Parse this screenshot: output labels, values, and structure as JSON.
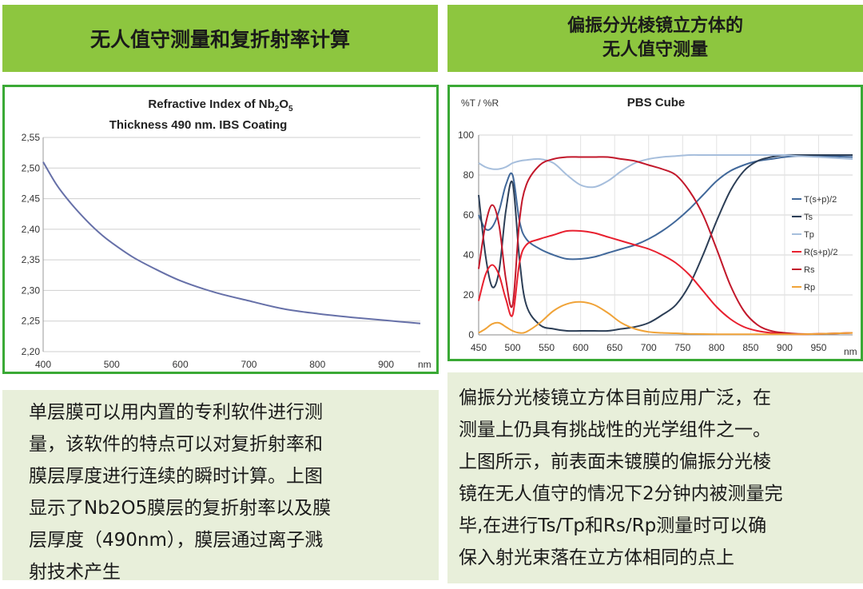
{
  "left": {
    "header": "无人值守测量和复折射率计算",
    "description_lines": [
      "单层膜可以用内置的专利软件进行测",
      "量，该软件的特点可以对复折射率和",
      "膜层厚度进行连续的瞬时计算。上图",
      "显示了Nb2O5膜层的复折射率以及膜",
      "层厚度（490nm），膜层通过离子溅",
      "射技术产生"
    ]
  },
  "right": {
    "header_line1": "偏振分光棱镜立方体的",
    "header_line2": "无人值守测量",
    "description_lines": [
      "偏振分光棱镜立方体目前应用广泛，在",
      "测量上仍具有挑战性的光学组件之一。",
      "上图所示，前表面未镀膜的偏振分光棱",
      "镜在无人值守的情况下2分钟内被测量完",
      "毕,在进行Ts/Tp和Rs/Rp测量时可以确",
      "保入射光束落在立方体相同的点上"
    ]
  },
  "chart_data": [
    {
      "type": "line",
      "title_prefix": "Refractive Index of Nb",
      "title_sub1": "2",
      "title_mid": "O",
      "title_sub2": "5",
      "subtitle": "Thickness 490 nm. IBS Coating",
      "xunit": "nm",
      "xlim": [
        400,
        950
      ],
      "ylim": [
        2.2,
        2.55
      ],
      "xticks": [
        "400",
        "500",
        "600",
        "700",
        "800",
        "900"
      ],
      "yticks": [
        "2,20",
        "2,25",
        "2,30",
        "2,35",
        "2,40",
        "2,45",
        "2,50",
        "2,55"
      ],
      "grid": true,
      "color": "#6670a8",
      "x": [
        400,
        420,
        440,
        460,
        480,
        500,
        530,
        560,
        600,
        650,
        700,
        750,
        800,
        850,
        900,
        950
      ],
      "y": [
        2.51,
        2.472,
        2.443,
        2.418,
        2.396,
        2.378,
        2.355,
        2.337,
        2.316,
        2.297,
        2.283,
        2.27,
        2.262,
        2.256,
        2.251,
        2.246
      ]
    },
    {
      "type": "line",
      "title": "PBS Cube",
      "ylabel": "%T / %R",
      "xunit": "nm",
      "xlim": [
        450,
        1000
      ],
      "ylim": [
        0,
        100
      ],
      "xticks": [
        "450",
        "500",
        "550",
        "600",
        "650",
        "700",
        "750",
        "800",
        "850",
        "900",
        "950"
      ],
      "xtick_values": [
        450,
        500,
        550,
        600,
        650,
        700,
        750,
        800,
        850,
        900,
        950
      ],
      "yticks": [
        "0",
        "20",
        "40",
        "60",
        "80",
        "100"
      ],
      "ytick_values": [
        0,
        20,
        40,
        60,
        80,
        100
      ],
      "grid": true,
      "legend_position": "right",
      "x": [
        450,
        460,
        470,
        480,
        490,
        500,
        510,
        520,
        540,
        560,
        580,
        600,
        620,
        640,
        660,
        680,
        700,
        720,
        740,
        760,
        780,
        800,
        820,
        840,
        860,
        880,
        900,
        920,
        950,
        1000
      ],
      "series": [
        {
          "name": "T(s+p)/2",
          "color": "#41689a",
          "values": [
            60,
            53,
            54,
            62,
            75,
            80,
            57,
            48,
            43,
            40,
            38,
            38,
            39,
            41,
            43,
            45,
            48,
            52,
            57,
            63,
            70,
            77,
            82,
            85,
            87,
            88,
            89,
            89.5,
            89.5,
            89
          ]
        },
        {
          "name": "Ts",
          "color": "#2c3e56",
          "values": [
            70,
            40,
            24,
            32,
            62,
            76,
            38,
            15,
            5,
            3,
            2,
            2,
            2,
            2,
            3,
            4,
            6,
            10,
            15,
            25,
            40,
            57,
            72,
            82,
            87,
            89,
            90,
            90,
            90,
            90
          ]
        },
        {
          "name": "Tp",
          "color": "#a6bedc",
          "values": [
            86,
            84,
            83,
            83,
            84,
            86,
            87,
            87.5,
            88,
            86,
            80,
            75,
            74,
            77,
            82,
            86,
            88,
            89,
            89.5,
            90,
            90,
            90,
            90,
            90,
            90,
            90,
            90,
            89.5,
            89,
            88
          ]
        },
        {
          "name": "R(s+p)/2",
          "color": "#e8202f",
          "values": [
            17,
            30,
            35,
            30,
            18,
            10,
            36,
            45,
            48,
            50,
            52,
            52,
            51,
            49,
            47,
            45,
            43,
            40,
            36,
            30,
            22,
            14,
            8,
            4,
            2,
            1,
            0.5,
            0.3,
            0.5,
            1
          ]
        },
        {
          "name": "Rs",
          "color": "#c2182b",
          "values": [
            33,
            55,
            65,
            55,
            28,
            15,
            57,
            75,
            85,
            88,
            89,
            89,
            89,
            89,
            88,
            87,
            85,
            83,
            80,
            72,
            60,
            43,
            25,
            12,
            5,
            2,
            1,
            0.5,
            0.5,
            1
          ]
        },
        {
          "name": "Rp",
          "color": "#f0a338",
          "values": [
            1,
            3,
            5.5,
            6,
            4,
            2,
            1,
            1.5,
            6,
            12,
            15.5,
            16.5,
            15,
            11,
            6,
            3,
            1.5,
            1,
            0.8,
            0.5,
            0.4,
            0.3,
            0.3,
            0.3,
            0.3,
            0.3,
            0.3,
            0.3,
            0.5,
            1
          ]
        }
      ]
    }
  ]
}
